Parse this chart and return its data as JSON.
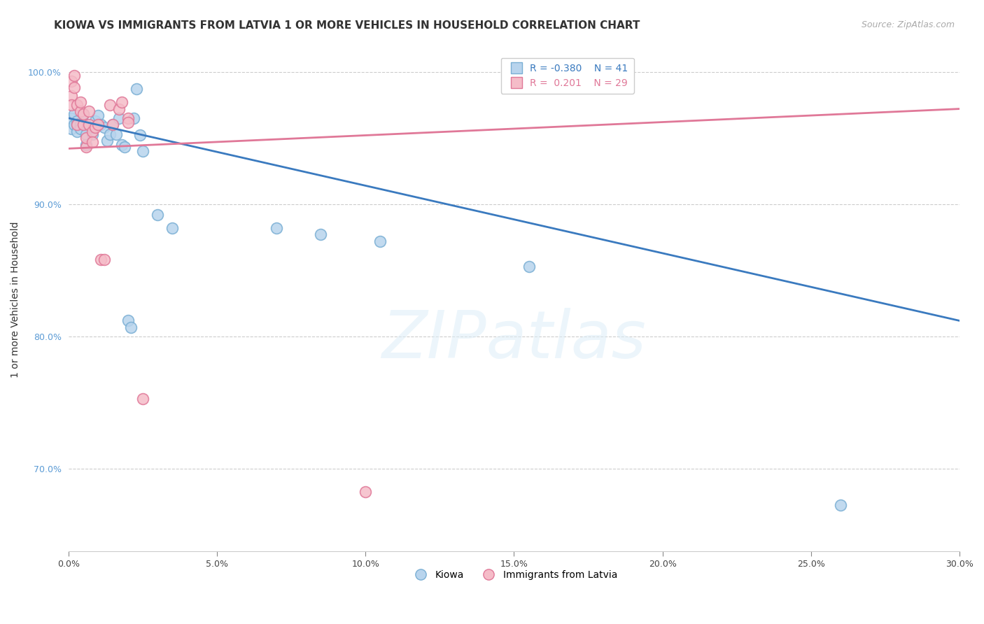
{
  "title": "KIOWA VS IMMIGRANTS FROM LATVIA 1 OR MORE VEHICLES IN HOUSEHOLD CORRELATION CHART",
  "source": "Source: ZipAtlas.com",
  "ylabel": "1 or more Vehicles in Household",
  "xlim": [
    0.0,
    0.3
  ],
  "ylim": [
    0.638,
    1.018
  ],
  "xticks": [
    0.0,
    0.05,
    0.1,
    0.15,
    0.2,
    0.25,
    0.3
  ],
  "yticks": [
    0.7,
    0.8,
    0.9,
    1.0
  ],
  "ytick_labels": [
    "70.0%",
    "80.0%",
    "90.0%",
    "100.0%"
  ],
  "xtick_labels": [
    "0.0%",
    "5.0%",
    "10.0%",
    "15.0%",
    "20.0%",
    "25.0%",
    "30.0%"
  ],
  "kiowa_R": -0.38,
  "kiowa_N": 41,
  "latvia_R": 0.201,
  "latvia_N": 29,
  "kiowa_color": "#b8d4ed",
  "kiowa_edge_color": "#7aafd4",
  "latvia_color": "#f5bcc8",
  "latvia_edge_color": "#e07898",
  "trend_blue": "#3a7abf",
  "trend_pink": "#e07898",
  "kiowa_x": [
    0.001,
    0.001,
    0.002,
    0.002,
    0.003,
    0.003,
    0.003,
    0.004,
    0.004,
    0.005,
    0.005,
    0.006,
    0.006,
    0.007,
    0.008,
    0.008,
    0.009,
    0.01,
    0.01,
    0.011,
    0.012,
    0.013,
    0.014,
    0.015,
    0.016,
    0.017,
    0.018,
    0.019,
    0.02,
    0.021,
    0.022,
    0.023,
    0.024,
    0.025,
    0.03,
    0.035,
    0.07,
    0.085,
    0.105,
    0.155,
    0.26
  ],
  "kiowa_y": [
    0.965,
    0.957,
    0.96,
    0.968,
    0.963,
    0.96,
    0.955,
    0.96,
    0.957,
    0.962,
    0.968,
    0.953,
    0.945,
    0.96,
    0.953,
    0.958,
    0.963,
    0.96,
    0.967,
    0.96,
    0.958,
    0.948,
    0.953,
    0.96,
    0.953,
    0.965,
    0.945,
    0.943,
    0.812,
    0.807,
    0.965,
    0.987,
    0.952,
    0.94,
    0.892,
    0.882,
    0.882,
    0.877,
    0.872,
    0.853,
    0.673
  ],
  "latvia_x": [
    0.001,
    0.001,
    0.001,
    0.002,
    0.002,
    0.003,
    0.003,
    0.004,
    0.004,
    0.005,
    0.005,
    0.006,
    0.006,
    0.007,
    0.007,
    0.008,
    0.008,
    0.009,
    0.01,
    0.011,
    0.012,
    0.014,
    0.015,
    0.017,
    0.018,
    0.02,
    0.02,
    0.025,
    0.1
  ],
  "latvia_y": [
    0.993,
    0.982,
    0.975,
    0.988,
    0.997,
    0.975,
    0.96,
    0.97,
    0.977,
    0.96,
    0.968,
    0.943,
    0.95,
    0.97,
    0.96,
    0.955,
    0.947,
    0.958,
    0.96,
    0.858,
    0.858,
    0.975,
    0.96,
    0.972,
    0.977,
    0.965,
    0.962,
    0.753,
    0.683
  ],
  "blue_trend_x": [
    0.0,
    0.3
  ],
  "blue_trend_y": [
    0.965,
    0.812
  ],
  "pink_trend_x": [
    0.0,
    0.3
  ],
  "pink_trend_y": [
    0.942,
    0.972
  ],
  "watermark_zip": "ZIP",
  "watermark_atlas": "atlas",
  "background_color": "#ffffff",
  "grid_color": "#cccccc",
  "title_fontsize": 11,
  "axis_label_fontsize": 10,
  "tick_fontsize": 9,
  "legend_fontsize": 10,
  "source_fontsize": 9
}
